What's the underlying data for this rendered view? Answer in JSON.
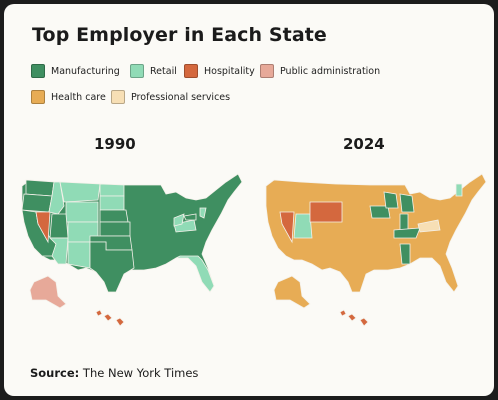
{
  "title": "Top Employer in Each State",
  "colors": {
    "Manufacturing": "#3f8f61",
    "Retail": "#90dbb6",
    "Hospitality": "#d4683e",
    "Public administration": "#e7a999",
    "Health care": "#e7ac55",
    "Professional services": "#f7dfb5"
  },
  "legend": [
    {
      "label": "Manufacturing"
    },
    {
      "label": "Retail"
    },
    {
      "label": "Hospitality"
    },
    {
      "label": "Public administration"
    },
    {
      "label": "Health care"
    },
    {
      "label": "Professional services"
    }
  ],
  "maps": [
    {
      "year": "1990",
      "base": "Manufacturing",
      "states": {
        "WA": "Manufacturing",
        "OR": "Manufacturing",
        "CA": "Manufacturing",
        "NV": "Hospitality",
        "ID": "Retail",
        "MT": "Retail",
        "WY": "Retail",
        "UT": "Manufacturing",
        "AZ": "Retail",
        "CO": "Retail",
        "NM": "Retail",
        "ND": "Retail",
        "SD": "Retail",
        "NE": "Manufacturing",
        "KS": "Manufacturing",
        "OK": "Manufacturing",
        "TX": "Manufacturing",
        "FL": "Retail",
        "AK": "Public administration",
        "HI": "Hospitality",
        "VA": "Retail",
        "WV": "Retail",
        "NJ": "Retail",
        "MD": "Manufacturing"
      }
    },
    {
      "year": "2024",
      "base": "Health care",
      "states": {
        "NV": "Hospitality",
        "UT": "Retail",
        "WY": "Hospitality",
        "IA": "Manufacturing",
        "WI": "Manufacturing",
        "MI": "Manufacturing",
        "IN": "Manufacturing",
        "KY": "Manufacturing",
        "AL": "Manufacturing",
        "VA": "Professional services",
        "VT": "Retail",
        "HI": "Hospitality"
      }
    }
  ],
  "source": {
    "label": "Source:",
    "text": "The New York Times"
  }
}
